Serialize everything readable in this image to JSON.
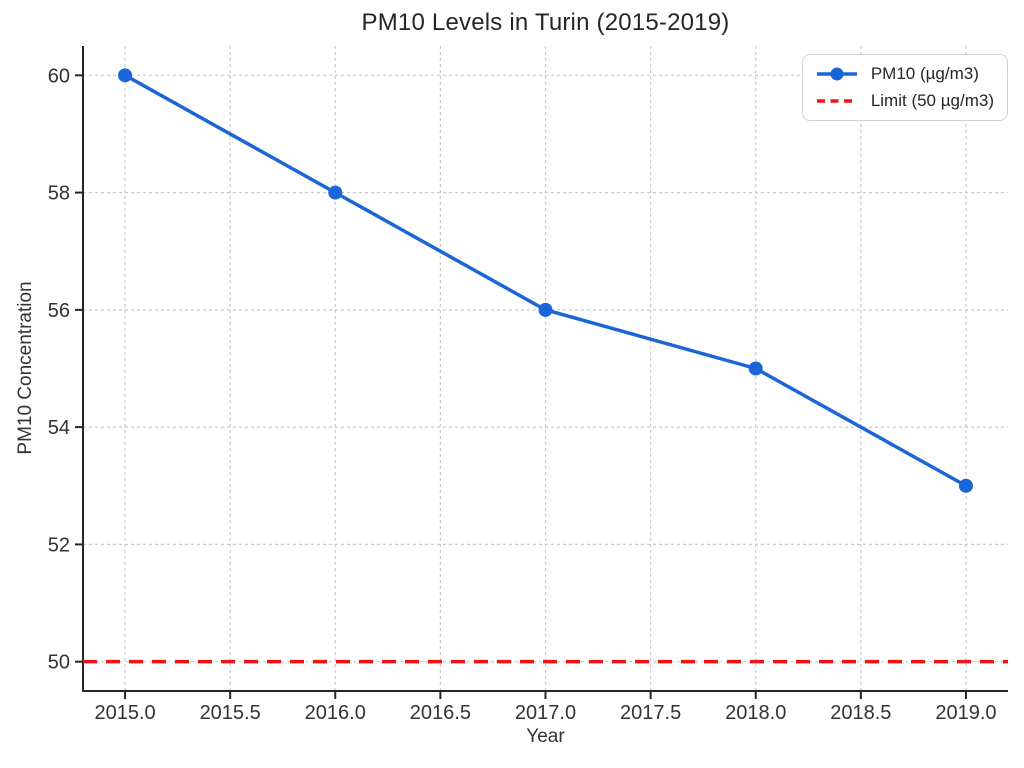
{
  "chart_data": {
    "type": "line",
    "title": "PM10 Levels in Turin (2015-2019)",
    "xlabel": "Year",
    "ylabel": "PM10 Concentration",
    "x": [
      2015,
      2016,
      2017,
      2018,
      2019
    ],
    "series": [
      {
        "name": "PM10 (µg/m3)",
        "type": "line",
        "values": [
          60,
          58,
          56,
          55,
          53
        ],
        "color": "#1a66d9",
        "linestyle": "solid",
        "marker": "circle"
      },
      {
        "name": "Limit (50 µg/m3)",
        "type": "hline",
        "value": 50,
        "color": "#f01414",
        "linestyle": "dashed"
      }
    ],
    "xlim": [
      2014.8,
      2019.2
    ],
    "ylim": [
      49.5,
      60.5
    ],
    "xticks": [
      2015.0,
      2015.5,
      2016.0,
      2016.5,
      2017.0,
      2017.5,
      2018.0,
      2018.5,
      2019.0
    ],
    "xtick_labels": [
      "2015.0",
      "2015.5",
      "2016.0",
      "2016.5",
      "2017.0",
      "2017.5",
      "2018.0",
      "2018.5",
      "2019.0"
    ],
    "yticks": [
      50,
      52,
      54,
      56,
      58,
      60
    ],
    "ytick_labels": [
      "50",
      "52",
      "54",
      "56",
      "58",
      "60"
    ],
    "grid": true,
    "grid_color": "#c9c9c9",
    "axis_color": "#262626",
    "legend_position": "upper right"
  }
}
